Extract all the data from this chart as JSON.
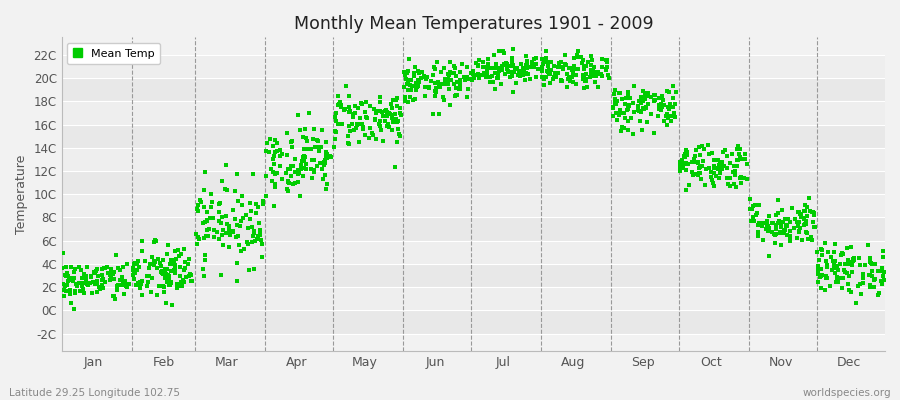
{
  "title": "Monthly Mean Temperatures 1901 - 2009",
  "ylabel": "Temperature",
  "xlabel_bottom_left": "Latitude 29.25 Longitude 102.75",
  "xlabel_bottom_right": "worldspecies.org",
  "legend_label": "Mean Temp",
  "marker_color": "#00cc00",
  "background_color": "#f2f2f2",
  "plot_bg_color": "#f2f2f2",
  "ytick_labels": [
    "-2C",
    "0C",
    "2C",
    "4C",
    "6C",
    "8C",
    "10C",
    "12C",
    "14C",
    "16C",
    "18C",
    "20C",
    "22C"
  ],
  "ytick_values": [
    -2,
    0,
    2,
    4,
    6,
    8,
    10,
    12,
    14,
    16,
    18,
    20,
    22
  ],
  "ylim": [
    -3.5,
    23.5
  ],
  "month_names": [
    "Jan",
    "Feb",
    "Mar",
    "Apr",
    "May",
    "Jun",
    "Jul",
    "Aug",
    "Sep",
    "Oct",
    "Nov",
    "Dec"
  ],
  "month_days": [
    15,
    46,
    74,
    105,
    135,
    166,
    196,
    227,
    258,
    288,
    319,
    349
  ],
  "month_starts": [
    1,
    32,
    60,
    91,
    121,
    152,
    182,
    213,
    244,
    274,
    305,
    335
  ],
  "month_ends": [
    31,
    59,
    90,
    120,
    151,
    181,
    212,
    243,
    273,
    304,
    334,
    365
  ],
  "month_means": [
    2.5,
    3.2,
    7.5,
    13.0,
    16.5,
    19.5,
    20.8,
    20.5,
    17.5,
    12.5,
    7.5,
    3.5
  ],
  "month_stds": [
    0.9,
    1.3,
    1.8,
    1.5,
    1.2,
    0.9,
    0.7,
    0.7,
    1.0,
    1.0,
    1.0,
    1.1
  ],
  "n_years": 109,
  "seed": 42,
  "band_colors": [
    "#e8e8e8",
    "#eeeeee"
  ]
}
